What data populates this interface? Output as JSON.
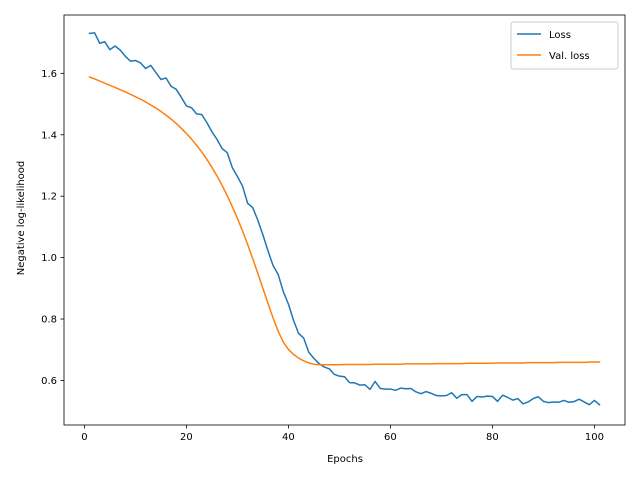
{
  "chart_data": {
    "type": "line",
    "title": "",
    "xlabel": "Epochs",
    "ylabel": "Negative log-likelihood",
    "xlim": [
      -4,
      106
    ],
    "ylim": [
      0.455,
      1.79
    ],
    "xticks": [
      0,
      20,
      40,
      60,
      80,
      100
    ],
    "yticks": [
      0.6,
      0.8,
      1.0,
      1.2,
      1.4,
      1.6
    ],
    "ytick_labels": [
      "0.6",
      "0.8",
      "1.0",
      "1.2",
      "1.4",
      "1.6"
    ],
    "grid": false,
    "legend": "top-right",
    "colors": {
      "Loss": "#1f77b4",
      "Val. loss": "#ff7f0e"
    },
    "series": [
      {
        "name": "Loss",
        "x": [
          1,
          2,
          3,
          4,
          5,
          6,
          7,
          8,
          9,
          10,
          11,
          12,
          13,
          14,
          15,
          16,
          17,
          18,
          19,
          20,
          21,
          22,
          23,
          24,
          25,
          26,
          27,
          28,
          29,
          30,
          31,
          32,
          33,
          34,
          35,
          36,
          37,
          38,
          39,
          40,
          41,
          42,
          43,
          44,
          45,
          46,
          47,
          48,
          49,
          50,
          51,
          52,
          53,
          54,
          55,
          56,
          57,
          58,
          59,
          60,
          61,
          62,
          63,
          64,
          65,
          66,
          67,
          68,
          69,
          70,
          71,
          72,
          73,
          74,
          75,
          76,
          77,
          78,
          79,
          80,
          81,
          82,
          83,
          84,
          85,
          86,
          87,
          88,
          89,
          90,
          91,
          92,
          93,
          94,
          95,
          96,
          97,
          98,
          99,
          100,
          101
        ],
        "values": [
          1.73,
          1.732,
          1.698,
          1.703,
          1.677,
          1.689,
          1.676,
          1.656,
          1.64,
          1.642,
          1.634,
          1.616,
          1.626,
          1.603,
          1.58,
          1.585,
          1.558,
          1.548,
          1.522,
          1.494,
          1.488,
          1.468,
          1.466,
          1.44,
          1.41,
          1.385,
          1.355,
          1.342,
          1.293,
          1.264,
          1.233,
          1.177,
          1.163,
          1.122,
          1.074,
          1.022,
          0.974,
          0.945,
          0.889,
          0.849,
          0.796,
          0.753,
          0.738,
          0.692,
          0.672,
          0.655,
          0.644,
          0.638,
          0.62,
          0.614,
          0.612,
          0.593,
          0.592,
          0.585,
          0.586,
          0.571,
          0.597,
          0.574,
          0.572,
          0.572,
          0.568,
          0.575,
          0.573,
          0.574,
          0.563,
          0.557,
          0.564,
          0.558,
          0.551,
          0.55,
          0.551,
          0.56,
          0.542,
          0.554,
          0.554,
          0.532,
          0.548,
          0.546,
          0.549,
          0.548,
          0.532,
          0.552,
          0.545,
          0.536,
          0.541,
          0.524,
          0.53,
          0.541,
          0.547,
          0.532,
          0.528,
          0.53,
          0.529,
          0.535,
          0.529,
          0.531,
          0.539,
          0.53,
          0.521,
          0.535,
          0.521
        ]
      },
      {
        "name": "Val. loss",
        "x": [
          1,
          2,
          3,
          4,
          5,
          6,
          7,
          8,
          9,
          10,
          11,
          12,
          13,
          14,
          15,
          16,
          17,
          18,
          19,
          20,
          21,
          22,
          23,
          24,
          25,
          26,
          27,
          28,
          29,
          30,
          31,
          32,
          33,
          34,
          35,
          36,
          37,
          38,
          39,
          40,
          41,
          42,
          43,
          44,
          45,
          46,
          47,
          48,
          49,
          50,
          51,
          52,
          53,
          54,
          55,
          56,
          57,
          58,
          59,
          60,
          61,
          62,
          63,
          64,
          65,
          66,
          67,
          68,
          69,
          70,
          71,
          72,
          73,
          74,
          75,
          76,
          77,
          78,
          79,
          80,
          81,
          82,
          83,
          84,
          85,
          86,
          87,
          88,
          89,
          90,
          91,
          92,
          93,
          94,
          95,
          96,
          97,
          98,
          99,
          100,
          101
        ],
        "values": [
          1.588,
          1.582,
          1.575,
          1.568,
          1.561,
          1.554,
          1.547,
          1.54,
          1.532,
          1.524,
          1.516,
          1.507,
          1.497,
          1.487,
          1.476,
          1.464,
          1.451,
          1.437,
          1.421,
          1.404,
          1.386,
          1.366,
          1.344,
          1.32,
          1.294,
          1.266,
          1.235,
          1.202,
          1.166,
          1.128,
          1.087,
          1.043,
          0.997,
          0.949,
          0.9,
          0.851,
          0.803,
          0.76,
          0.725,
          0.701,
          0.685,
          0.673,
          0.664,
          0.657,
          0.653,
          0.651,
          0.651,
          0.651,
          0.651,
          0.651,
          0.652,
          0.652,
          0.652,
          0.652,
          0.652,
          0.652,
          0.653,
          0.653,
          0.653,
          0.653,
          0.653,
          0.653,
          0.654,
          0.654,
          0.654,
          0.654,
          0.654,
          0.654,
          0.655,
          0.655,
          0.655,
          0.655,
          0.655,
          0.655,
          0.656,
          0.656,
          0.656,
          0.656,
          0.656,
          0.656,
          0.657,
          0.657,
          0.657,
          0.657,
          0.657,
          0.657,
          0.658,
          0.658,
          0.658,
          0.658,
          0.658,
          0.658,
          0.659,
          0.659,
          0.659,
          0.659,
          0.659,
          0.659,
          0.66,
          0.66,
          0.66
        ]
      }
    ]
  }
}
